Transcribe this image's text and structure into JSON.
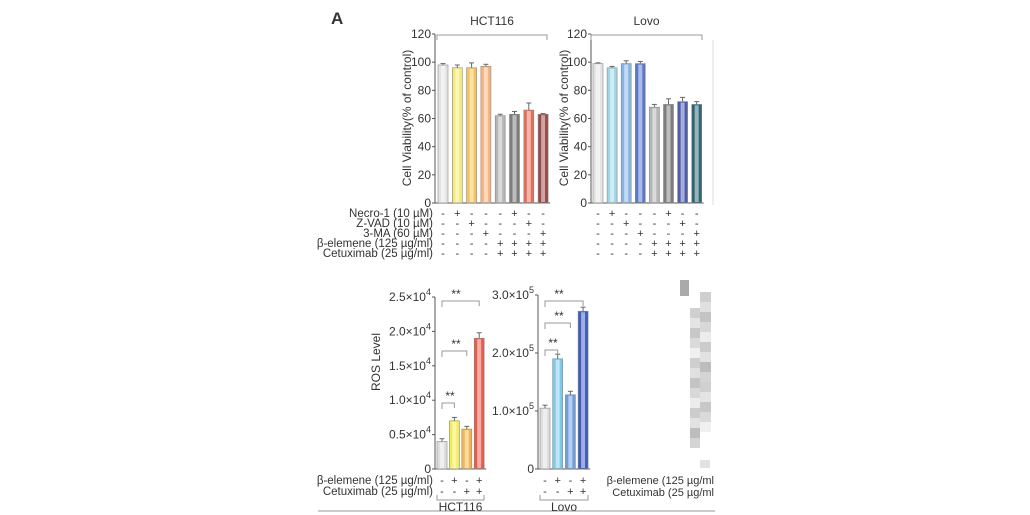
{
  "panel_label": "A",
  "colors": {
    "axis": "#555555",
    "bracket": "#888888",
    "text": "#333333"
  },
  "chart_data": [
    {
      "type": "bar",
      "group_label": "HCT116",
      "ylabel": "Cell Viability(% of control)",
      "ylim": [
        0,
        120
      ],
      "yticks": [
        "0",
        "20",
        "40",
        "60",
        "80",
        "100",
        "120"
      ],
      "values": [
        98,
        96,
        96,
        97,
        62,
        63,
        66,
        63
      ],
      "errors": [
        1,
        2,
        3.5,
        1.5,
        1,
        2,
        5,
        0.5
      ],
      "colors": [
        "#e4e4e4",
        "#f3ea7a",
        "#f4c45a",
        "#f7b47e",
        "#b5b5b5",
        "#7d7d7d",
        "#e46f58",
        "#9a4a48"
      ],
      "treatments": [
        {
          "label": "Necro-1 (10 µM)",
          "marks": [
            "-",
            "+",
            "-",
            "-",
            "-",
            "+",
            "-",
            "-"
          ]
        },
        {
          "label": "Z-VAD (10 µM)",
          "marks": [
            "-",
            "-",
            "+",
            "-",
            "-",
            "-",
            "+",
            "-"
          ]
        },
        {
          "label": "3-MA (60 µM)",
          "marks": [
            "-",
            "-",
            "-",
            "+",
            "-",
            "-",
            "-",
            "+"
          ]
        },
        {
          "label": "β-elemene (125 µg/ml)",
          "marks": [
            "-",
            "-",
            "-",
            "-",
            "+",
            "+",
            "+",
            "+"
          ]
        },
        {
          "label": "Cetuximab (25 µg/ml)",
          "marks": [
            "-",
            "-",
            "-",
            "-",
            "+",
            "+",
            "+",
            "+"
          ]
        }
      ],
      "significance": []
    },
    {
      "type": "bar",
      "group_label": "Lovo",
      "ylabel": "Cell Viability(% of control)",
      "ylim": [
        0,
        120
      ],
      "yticks": [
        "0",
        "20",
        "40",
        "60",
        "80",
        "100",
        "120"
      ],
      "values": [
        99,
        96,
        99,
        99,
        68,
        70,
        72,
        70
      ],
      "errors": [
        0.5,
        1,
        2,
        1.5,
        2,
        4,
        3,
        2
      ],
      "colors": [
        "#e4e4e4",
        "#9ed6e6",
        "#86b4e6",
        "#5879cc",
        "#b5b5b5",
        "#7d7d7d",
        "#4e5cae",
        "#2f6676"
      ],
      "treatments": [
        {
          "label": "",
          "marks": [
            "-",
            "+",
            "-",
            "-",
            "-",
            "+",
            "-",
            "-"
          ]
        },
        {
          "label": "",
          "marks": [
            "-",
            "-",
            "+",
            "-",
            "-",
            "-",
            "+",
            "-"
          ]
        },
        {
          "label": "",
          "marks": [
            "-",
            "-",
            "-",
            "+",
            "-",
            "-",
            "-",
            "+"
          ]
        },
        {
          "label": "",
          "marks": [
            "-",
            "-",
            "-",
            "-",
            "+",
            "+",
            "+",
            "+"
          ]
        },
        {
          "label": "",
          "marks": [
            "-",
            "-",
            "-",
            "-",
            "+",
            "+",
            "+",
            "+"
          ]
        }
      ],
      "significance": []
    },
    {
      "type": "bar",
      "group_label": "HCT116",
      "ylabel": "ROS  Level",
      "ylim": [
        0,
        25000
      ],
      "yticks": [
        {
          "m": "0",
          "e": ""
        },
        {
          "m": "0.5×10",
          "e": "4"
        },
        {
          "m": "1.0×10",
          "e": "4"
        },
        {
          "m": "1.5×10",
          "e": "4"
        },
        {
          "m": "2.0×10",
          "e": "4"
        },
        {
          "m": "2.5×10",
          "e": "4"
        }
      ],
      "values": [
        4000,
        7000,
        5800,
        19000
      ],
      "errors": [
        400,
        500,
        400,
        800
      ],
      "colors": [
        "#dedede",
        "#f4ec55",
        "#f3b64c",
        "#e65c4c"
      ],
      "treatments": [
        {
          "label": "β-elemene (125 µg/ml)",
          "marks": [
            "-",
            "+",
            "-",
            "+"
          ]
        },
        {
          "label": "Cetuximab (25 µg/ml)",
          "marks": [
            "-",
            "-",
            "+",
            "+"
          ]
        }
      ],
      "significance": [
        {
          "from": 0,
          "to": 1,
          "label": "**"
        },
        {
          "from": 0,
          "to": 2,
          "label": "**"
        },
        {
          "from": 0,
          "to": 3,
          "label": "**"
        }
      ]
    },
    {
      "type": "bar",
      "group_label": "Lovo",
      "ylabel": "",
      "ylim": [
        0,
        300000
      ],
      "yticks": [
        {
          "m": "0",
          "e": ""
        },
        {
          "m": "1.0×10",
          "e": "5"
        },
        {
          "m": "2.0×10",
          "e": "5"
        },
        {
          "m": "3.0×10",
          "e": "5"
        }
      ],
      "values": [
        105000,
        190000,
        128000,
        272000
      ],
      "errors": [
        5000,
        8000,
        6000,
        7000
      ],
      "colors": [
        "#dedede",
        "#7ecae6",
        "#6c9ede",
        "#3d5cbc"
      ],
      "treatments": [
        {
          "label": "",
          "marks": [
            "-",
            "+",
            "-",
            "+"
          ]
        },
        {
          "label": "",
          "marks": [
            "-",
            "-",
            "+",
            "+"
          ]
        }
      ],
      "significance": [
        {
          "from": 0,
          "to": 1,
          "label": "**"
        },
        {
          "from": 0,
          "to": 2,
          "label": "**"
        },
        {
          "from": 0,
          "to": 3,
          "label": "**"
        }
      ]
    }
  ],
  "cropped_panel": {
    "treatments": [
      "β-elemene (125 µg/ml",
      "Cetuximab (25 µg/ml"
    ]
  }
}
